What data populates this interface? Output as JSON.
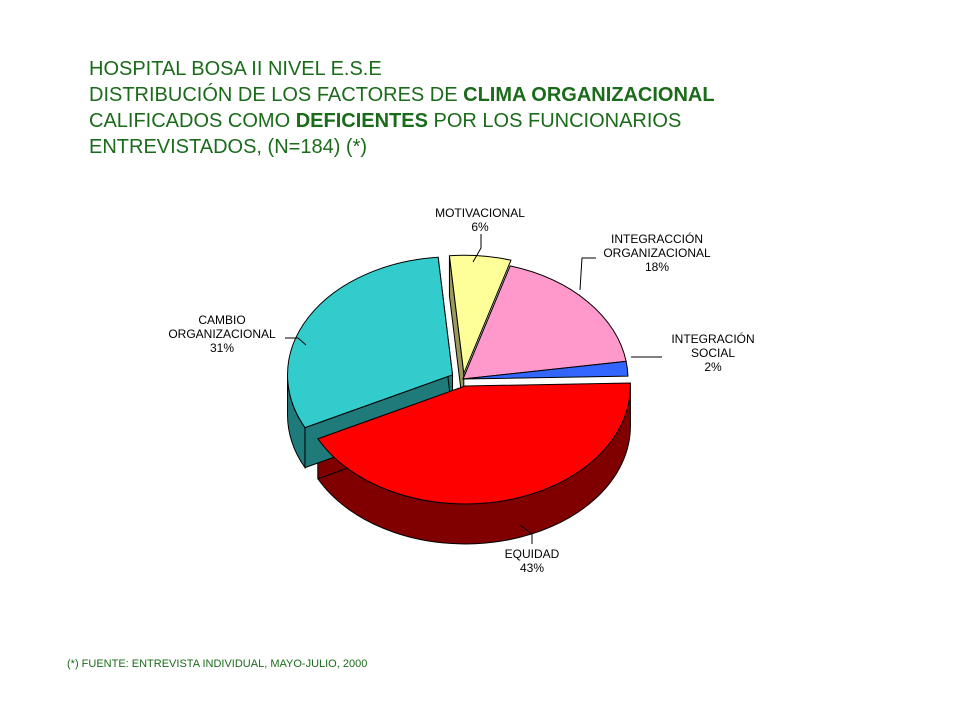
{
  "title": {
    "line1": "HOSPITAL BOSA II NIVEL E.S.E",
    "line2_pre": "DISTRIBUCIÓN DE LOS FACTORES DE ",
    "line2_bold": "CLIMA ORGANIZACIONAL",
    "line3_pre": "CALIFICADOS COMO ",
    "line3_bold": "DEFICIENTES",
    "line3_post": " POR LOS FUNCIONARIOS",
    "line4": "ENTREVISTADOS,  (N=184) (*)"
  },
  "footnote": "(*) FUENTE: ENTREVISTA  INDIVIDUAL,  MAYO-JULIO, 2000",
  "chart_data": {
    "type": "pie",
    "title": "DISTRIBUCIÓN DE LOS FACTORES DE CLIMA ORGANIZACIONAL CALIFICADOS COMO DEFICIENTES POR LOS FUNCIONARIOS ENTREVISTADOS, (N=184) (*)",
    "slices": [
      {
        "label": "MOTIVACIONAL",
        "label_lines": [
          "MOTIVACIONAL"
        ],
        "value": 6,
        "pct_text": "6%",
        "color": "#ffff99",
        "side_color": "#99995c"
      },
      {
        "label": "INTEGRACCIÓN ORGANIZACIONAL",
        "label_lines": [
          "INTEGRACCIÓN",
          "ORGANIZACIONAL"
        ],
        "value": 18,
        "pct_text": "18%",
        "color": "#ff99cc",
        "side_color": "#995c7a"
      },
      {
        "label": "INTEGRACIÓN SOCIAL",
        "label_lines": [
          "INTEGRACIÓN",
          "SOCIAL"
        ],
        "value": 2,
        "pct_text": "2%",
        "color": "#3366ff",
        "side_color": "#1f3d99"
      },
      {
        "label": "EQUIDAD",
        "label_lines": [
          "EQUIDAD"
        ],
        "value": 43,
        "pct_text": "43%",
        "color": "#ff0000",
        "side_color": "#800000"
      },
      {
        "label": "CAMBIO ORGANIZACIONAL",
        "label_lines": [
          "CAMBIO",
          "ORGANIZACIONAL"
        ],
        "value": 31,
        "pct_text": "31%",
        "color": "#33cccc",
        "side_color": "#1f7a7a"
      }
    ]
  }
}
